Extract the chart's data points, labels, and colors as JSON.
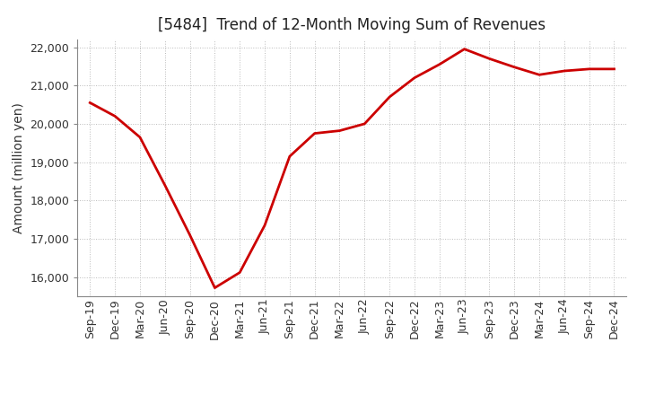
{
  "title": "[5484]  Trend of 12-Month Moving Sum of Revenues",
  "ylabel": "Amount (million yen)",
  "line_color": "#CC0000",
  "background_color": "#FFFFFF",
  "plot_bg_color": "#FFFFFF",
  "grid_color": "#BBBBBB",
  "xlabels": [
    "Sep-19",
    "Dec-19",
    "Mar-20",
    "Jun-20",
    "Sep-20",
    "Dec-20",
    "Mar-21",
    "Jun-21",
    "Sep-21",
    "Dec-21",
    "Mar-22",
    "Jun-22",
    "Sep-22",
    "Dec-22",
    "Mar-23",
    "Jun-23",
    "Sep-23",
    "Dec-23",
    "Mar-24",
    "Jun-24",
    "Sep-24",
    "Dec-24"
  ],
  "values": [
    20550,
    20200,
    19650,
    18400,
    17100,
    15720,
    16120,
    17350,
    19150,
    19750,
    19820,
    20000,
    20700,
    21200,
    21550,
    21950,
    21700,
    21480,
    21280,
    21380,
    21430,
    21430
  ],
  "ylim": [
    15500,
    22200
  ],
  "yticks": [
    16000,
    17000,
    18000,
    19000,
    20000,
    21000,
    22000
  ],
  "title_fontsize": 12,
  "ylabel_fontsize": 10,
  "tick_fontsize": 9,
  "line_width": 2.0
}
